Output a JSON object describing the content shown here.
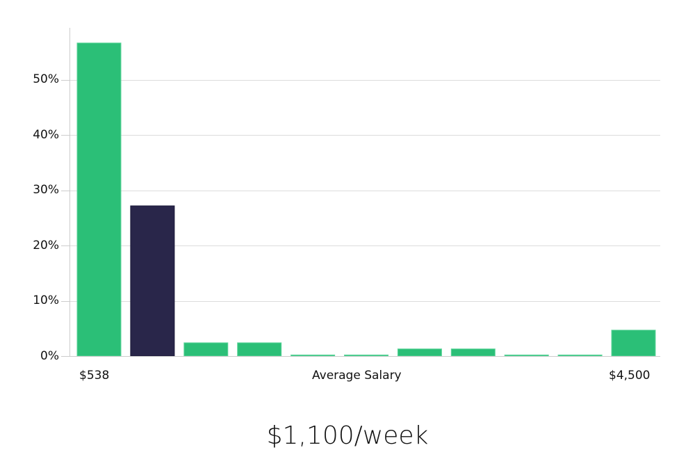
{
  "chart_data": {
    "type": "bar",
    "title": "$1,100/week",
    "xlabel": "Average Salary",
    "ylabel": "",
    "x_range_labels": {
      "min": "$538",
      "max": "$4,500"
    },
    "categories": [
      "bin1",
      "bin2",
      "bin3",
      "bin4",
      "bin5",
      "bin6",
      "bin7",
      "bin8",
      "bin9",
      "bin10",
      "bin11"
    ],
    "values": [
      56.7,
      27.2,
      2.4,
      2.4,
      0.2,
      0.2,
      1.3,
      1.3,
      0.2,
      0.2,
      4.7
    ],
    "highlight_index": 1,
    "yticks": [
      "0%",
      "10%",
      "20%",
      "30%",
      "40%",
      "50%"
    ],
    "ylim": [
      0,
      60
    ],
    "grid": true,
    "legend": null,
    "colors": {
      "bar": "#2bbf77",
      "highlight": "#29264a",
      "grid": "#dcdcdc",
      "axis": "#cccccc"
    }
  },
  "labels": {
    "title": "$1,100/week",
    "xlabel": "Average Salary",
    "xmin": "$538",
    "xmax": "$4,500",
    "yticks": [
      "0%",
      "10%",
      "20%",
      "30%",
      "40%",
      "50%"
    ]
  }
}
